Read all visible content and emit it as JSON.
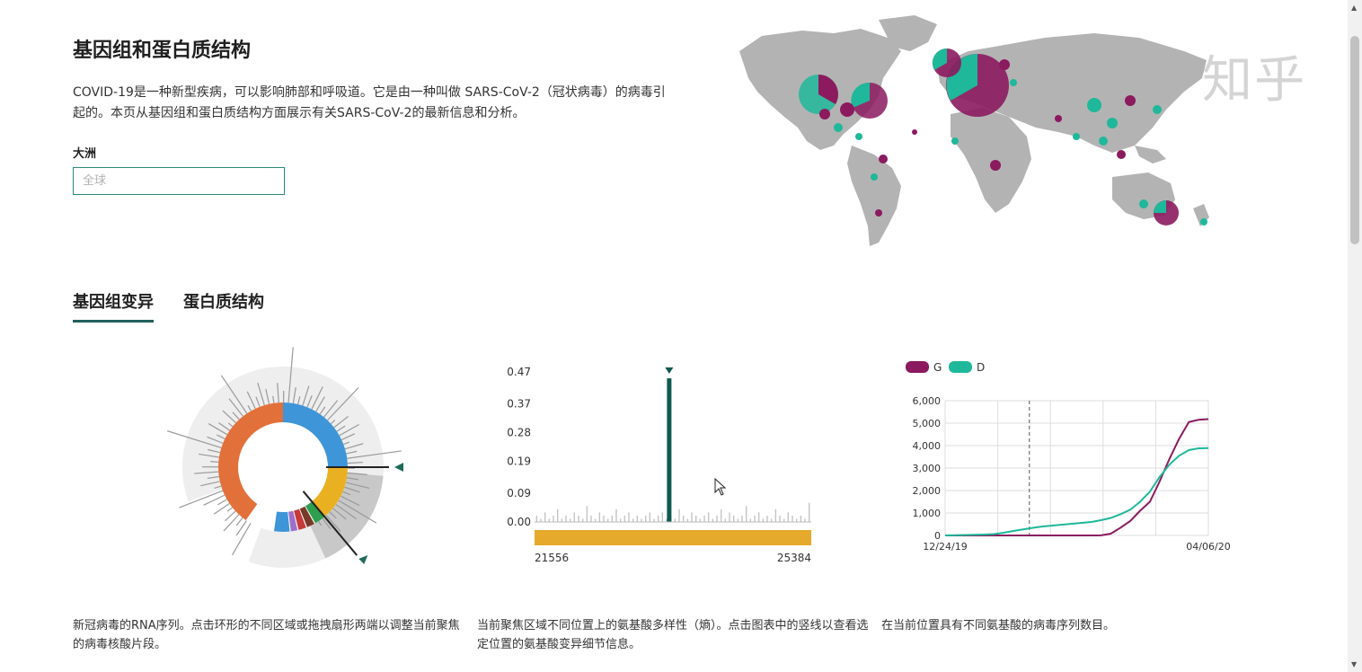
{
  "header": {
    "title": "基因组和蛋白质结构",
    "description": "COVID-19是一种新型疾病，可以影响肺部和呼吸道。它是由一种叫做 SARS-CoV-2（冠状病毒）的病毒引起的。本页从基因组和蛋白质结构方面展示有关SARS-CoV-2的最新信息和分析。"
  },
  "filter": {
    "label": "大洲",
    "placeholder": "全球"
  },
  "watermark": "知乎",
  "tabs": [
    {
      "label": "基因组变异",
      "active": true
    },
    {
      "label": "蛋白质结构",
      "active": false
    }
  ],
  "colors": {
    "G": "#8b1a5f",
    "D": "#1fb89a",
    "accent": "#1f5f5b",
    "ring_orange": "#e2703a",
    "ring_blue": "#3e95d7",
    "ring_yellow": "#e9b022",
    "entropy_bar": "#e5a92b",
    "map_land": "#b3b3b3"
  },
  "captions": [
    "新冠病毒的RNA序列。点击环形的不同区域或拖拽扇形两端以调整当前聚焦的病毒核酸片段。",
    "当前聚焦区域不同位置上的氨基酸多样性（熵）。点击图表中的竖线以查看选定位置的氨基酸变异细节信息。",
    "在当前位置具有不同氨基酸的病毒序列数目。"
  ],
  "chart_data": [
    {
      "type": "bar",
      "x_range": [
        21556,
        25384
      ],
      "x_tick_labels": [
        "21556",
        "25384"
      ],
      "y_tick_labels": [
        "0.47",
        "0.37",
        "0.28",
        "0.19",
        "0.09",
        "0.00"
      ],
      "ylim": [
        0,
        0.47
      ],
      "highlight": {
        "value": 0.45
      },
      "baseline_values": [
        0.02,
        0.01,
        0.03,
        0.01,
        0.02,
        0.04,
        0.01,
        0.02,
        0.01,
        0.03,
        0.02,
        0.01,
        0.05,
        0.02,
        0.01,
        0.03,
        0.02,
        0.01,
        0.02,
        0.04,
        0.01,
        0.02,
        0.03,
        0.01,
        0.02,
        0.01,
        0.02,
        0.03,
        0.01,
        0.02,
        0.03,
        0.01,
        0.02,
        0.01,
        0.04,
        0.02,
        0.01,
        0.03,
        0.02,
        0.01,
        0.02,
        0.03,
        0.01,
        0.02,
        0.04,
        0.01,
        0.03,
        0.02,
        0.01,
        0.02,
        0.05,
        0.01,
        0.02,
        0.03,
        0.01,
        0.02,
        0.01,
        0.04,
        0.02,
        0.01,
        0.03,
        0.02,
        0.01,
        0.02,
        0.01,
        0.06
      ]
    },
    {
      "type": "line",
      "x_tick_labels": [
        "12/24/19",
        "04/06/20"
      ],
      "y_tick_labels": [
        "0",
        "1,000",
        "2,000",
        "3,000",
        "4,000",
        "5,000",
        "6,000"
      ],
      "ylim": [
        0,
        6000
      ],
      "legend": [
        "G",
        "D"
      ],
      "legend_position": "top-left",
      "series": [
        {
          "name": "G",
          "values": [
            0,
            0,
            0,
            0,
            0,
            0,
            0,
            0,
            0,
            0,
            0,
            0,
            0,
            0,
            0,
            0,
            5,
            80,
            350,
            650,
            1100,
            1500,
            2400,
            3400,
            4300,
            5050,
            5150,
            5180
          ]
        },
        {
          "name": "D",
          "values": [
            0,
            10,
            20,
            30,
            40,
            60,
            120,
            200,
            270,
            340,
            400,
            440,
            480,
            520,
            560,
            600,
            680,
            780,
            950,
            1150,
            1500,
            1950,
            2600,
            3150,
            3550,
            3800,
            3880,
            3890
          ]
        }
      ]
    }
  ]
}
